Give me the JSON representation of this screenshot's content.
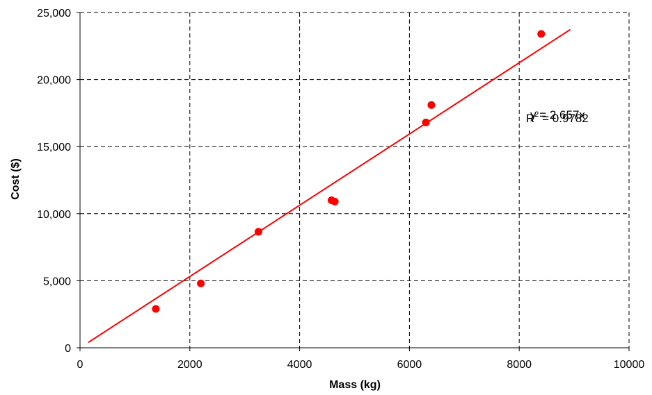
{
  "chart_data": {
    "type": "scatter",
    "xlabel": "Mass (kg)",
    "ylabel": "Cost ($)",
    "xlim": [
      0,
      10000
    ],
    "ylim": [
      0,
      25000
    ],
    "x_ticks": [
      0,
      2000,
      4000,
      6000,
      8000,
      10000
    ],
    "y_ticks": [
      0,
      5000,
      10000,
      15000,
      20000,
      25000
    ],
    "x_tick_labels": [
      "0",
      "2000",
      "4000",
      "6000",
      "8000",
      "10000"
    ],
    "y_tick_labels": [
      "0",
      "5,000",
      "10,000",
      "15,000",
      "20,000",
      "25,000"
    ],
    "grid": true,
    "series": [
      {
        "points": [
          {
            "x": 1380,
            "y": 2900
          },
          {
            "x": 2200,
            "y": 4800
          },
          {
            "x": 3250,
            "y": 8650
          },
          {
            "x": 4580,
            "y": 11000
          },
          {
            "x": 4640,
            "y": 10900
          },
          {
            "x": 6300,
            "y": 16800
          },
          {
            "x": 6400,
            "y": 18100
          },
          {
            "x": 8400,
            "y": 23400
          }
        ],
        "color": "#ff0000"
      }
    ],
    "trendline": {
      "slope": 2.657,
      "x_range": [
        150,
        8930
      ],
      "color": "#ff0000"
    },
    "annotations": {
      "equation": "y = 2.657x",
      "r2_prefix": "R",
      "r2_sup": "2",
      "r2_value": " = 0.9782"
    }
  }
}
